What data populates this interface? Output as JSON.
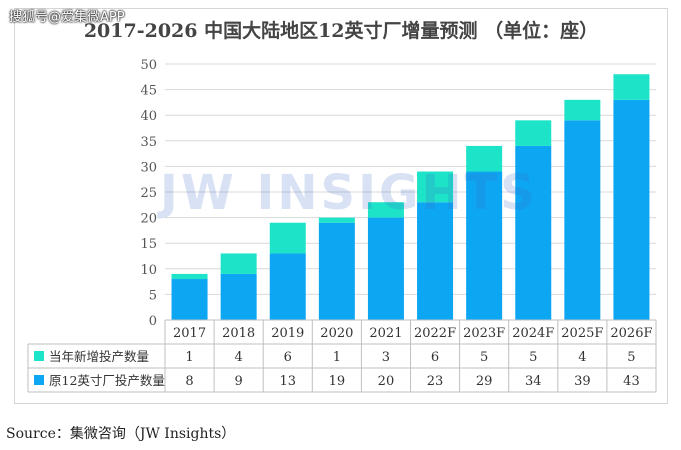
{
  "watermark_text": "搜狐号@爱集微APP",
  "brand_watermark": "JW INSIGHTS",
  "source": "Source：集微咨询（JW Insights）",
  "colors": {
    "new_capacity": "#1de3c8",
    "existing_capacity": "#0ca6f2",
    "grid": "#d9d9d9",
    "text": "#333333"
  },
  "chart_data": {
    "type": "bar",
    "stacked": true,
    "title": "2017-2026 中国大陆地区12英寸厂增量预测 （单位：座）",
    "categories": [
      "2017",
      "2018",
      "2019",
      "2020",
      "2021",
      "2022F",
      "2023F",
      "2024F",
      "2025F",
      "2026F"
    ],
    "series": [
      {
        "name": "原12英寸厂投产数量",
        "values": [
          8,
          9,
          13,
          19,
          20,
          23,
          29,
          34,
          39,
          43
        ]
      },
      {
        "name": "当年新增投产数量",
        "values": [
          1,
          4,
          6,
          1,
          3,
          6,
          5,
          5,
          4,
          5
        ]
      }
    ],
    "ylim": [
      0,
      50
    ],
    "yticks": [
      0,
      5,
      10,
      15,
      20,
      25,
      30,
      35,
      40,
      45,
      50
    ],
    "grid": true,
    "legend": "data-table-below"
  }
}
